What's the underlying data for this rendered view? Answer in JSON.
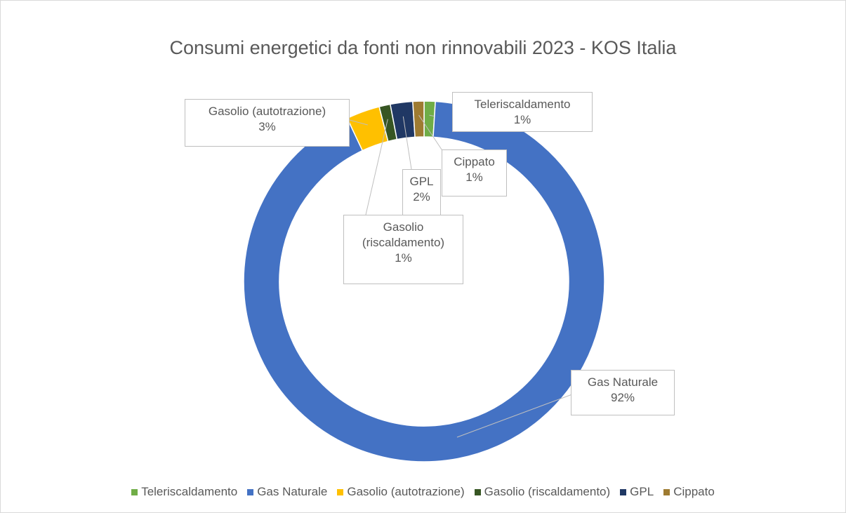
{
  "chart_data": {
    "type": "doughnut",
    "title": "Consumi energetici da fonti non rinnovabili 2023 - KOS Italia",
    "categories": [
      "Teleriscaldamento",
      "Gas Naturale",
      "Gasolio (autotrazione)",
      "Gasolio (riscaldamento)",
      "GPL",
      "Cippato"
    ],
    "values": [
      1,
      92,
      3,
      1,
      2,
      1
    ],
    "value_labels": [
      "1%",
      "92%",
      "3%",
      "1%",
      "2%",
      "1%"
    ],
    "colors": [
      "#70ad47",
      "#4472c4",
      "#ffc000",
      "#375623",
      "#203864",
      "#9e7b31"
    ],
    "legend": "bottom"
  }
}
